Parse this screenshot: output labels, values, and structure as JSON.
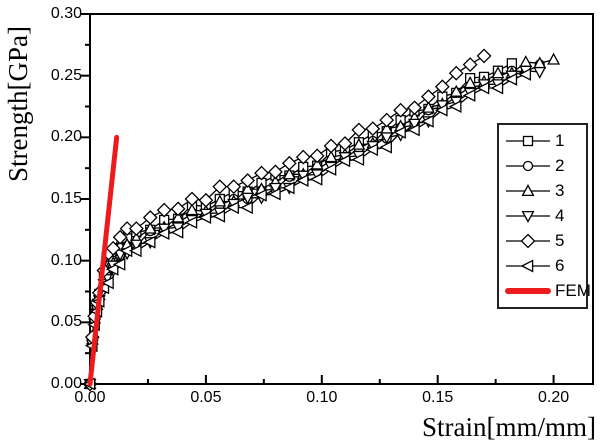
{
  "figure": {
    "background": "#ffffff"
  },
  "chart_data": {
    "type": "line",
    "title": "",
    "xlabel": "Strain[mm/mm]",
    "ylabel": "Strength[GPa]",
    "xlim": [
      0,
      0.217
    ],
    "ylim": [
      0,
      0.3
    ],
    "grid": false,
    "legend_position": "right-middle",
    "x_ticks": {
      "major": [
        0,
        0.05,
        0.1,
        0.15,
        0.2
      ],
      "labels": [
        "0.00",
        "0.05",
        "0.10",
        "0.15",
        "0.20"
      ],
      "minor": [
        0.025,
        0.075,
        0.125,
        0.175
      ]
    },
    "y_ticks": {
      "major": [
        0,
        0.05,
        0.1,
        0.15,
        0.2,
        0.25,
        0.3
      ],
      "labels": [
        "0.00",
        "0.05",
        "0.10",
        "0.15",
        "0.20",
        "0.25",
        "0.30"
      ],
      "minor": [
        0.025,
        0.075,
        0.125,
        0.175,
        0.225,
        0.275
      ]
    },
    "styles": {
      "series_color": "#000000",
      "line_width": 1.3,
      "fem_color": "#ed1c1c",
      "fem_width": 5,
      "marker_fill": "#ffffff"
    },
    "strains": [
      0,
      0.001,
      0.002,
      0.003,
      0.004,
      0.006,
      0.008,
      0.01,
      0.013,
      0.016,
      0.02,
      0.026,
      0.032,
      0.038,
      0.044,
      0.05,
      0.056,
      0.062,
      0.068,
      0.074,
      0.08,
      0.086,
      0.092,
      0.098,
      0.104,
      0.11,
      0.116,
      0.122,
      0.128,
      0.134,
      0.14,
      0.146,
      0.152,
      0.158,
      0.164,
      0.17,
      0.176,
      0.182,
      0.188,
      0.194,
      0.2
    ],
    "series": [
      {
        "name": "1",
        "marker": "square",
        "values": [
          0,
          0.036,
          0.054,
          0.065,
          0.073,
          0.087,
          0.096,
          0.106,
          0.11,
          0.118,
          0.123,
          0.125,
          0.133,
          0.134,
          0.145,
          0.144,
          0.15,
          0.156,
          0.156,
          0.163,
          0.169,
          0.169,
          0.176,
          0.177,
          0.188,
          0.19,
          0.196,
          0.203,
          0.205,
          0.214,
          0.221,
          0.223,
          0.233,
          0.236,
          0.248,
          0.249,
          0.254,
          0.26
        ]
      },
      {
        "name": "2",
        "marker": "circle",
        "values": [
          0,
          0.034,
          0.051,
          0.062,
          0.07,
          0.08,
          0.091,
          0.1,
          0.104,
          0.112,
          0.112,
          0.124,
          0.125,
          0.131,
          0.138,
          0.137,
          0.145,
          0.15,
          0.15,
          0.157,
          0.158,
          0.168,
          0.168,
          0.174,
          0.181,
          0.183,
          0.191,
          0.197,
          0.199,
          0.208,
          0.21,
          0.222,
          0.225,
          0.233,
          0.241,
          0.242,
          0.249,
          0.254,
          0.253,
          0.259
        ]
      },
      {
        "name": "3",
        "marker": "triangle-up",
        "values": [
          0,
          0.036,
          0.053,
          0.064,
          0.072,
          0.083,
          0.094,
          0.098,
          0.112,
          0.113,
          0.118,
          0.126,
          0.127,
          0.135,
          0.141,
          0.14,
          0.148,
          0.148,
          0.158,
          0.158,
          0.164,
          0.17,
          0.17,
          0.178,
          0.184,
          0.186,
          0.194,
          0.195,
          0.207,
          0.209,
          0.216,
          0.224,
          0.227,
          0.237,
          0.244,
          0.245,
          0.252,
          0.252,
          0.261,
          0.26,
          0.263
        ]
      },
      {
        "name": "4",
        "marker": "triangle-down",
        "values": [
          0,
          0.032,
          0.049,
          0.06,
          0.068,
          0.081,
          0.085,
          0.096,
          0.105,
          0.106,
          0.113,
          0.115,
          0.126,
          0.127,
          0.133,
          0.138,
          0.139,
          0.146,
          0.151,
          0.151,
          0.159,
          0.159,
          0.169,
          0.17,
          0.176,
          0.184,
          0.185,
          0.193,
          0.2,
          0.202,
          0.211,
          0.213,
          0.226,
          0.229,
          0.236,
          0.243,
          0.243,
          0.25,
          0.254,
          0.253
        ]
      },
      {
        "name": "5",
        "marker": "diamond",
        "values": [
          0,
          0.038,
          0.055,
          0.066,
          0.074,
          0.092,
          0.106,
          0.11,
          0.119,
          0.126,
          0.126,
          0.135,
          0.141,
          0.142,
          0.15,
          0.149,
          0.16,
          0.16,
          0.165,
          0.171,
          0.172,
          0.179,
          0.184,
          0.185,
          0.193,
          0.195,
          0.206,
          0.207,
          0.214,
          0.222,
          0.224,
          0.233,
          0.241,
          0.252,
          0.259,
          0.266
        ]
      },
      {
        "name": "6",
        "marker": "triangle-left",
        "values": [
          0,
          0.031,
          0.048,
          0.059,
          0.067,
          0.078,
          0.082,
          0.093,
          0.097,
          0.108,
          0.108,
          0.115,
          0.122,
          0.123,
          0.131,
          0.135,
          0.136,
          0.143,
          0.143,
          0.153,
          0.154,
          0.159,
          0.165,
          0.166,
          0.174,
          0.181,
          0.182,
          0.19,
          0.192,
          0.204,
          0.206,
          0.213,
          0.222,
          0.225,
          0.234,
          0.24,
          0.24,
          0.247,
          0.251
        ]
      },
      {
        "name": "FEM",
        "fem": true,
        "points": [
          [
            0,
            0
          ],
          [
            0.0115,
            0.2
          ]
        ]
      }
    ]
  }
}
